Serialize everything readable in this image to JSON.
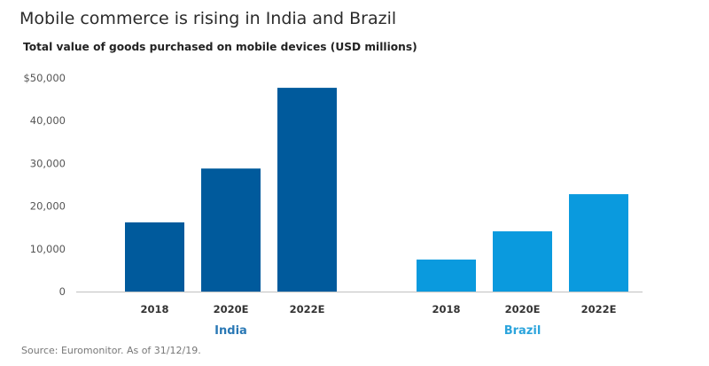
{
  "chart_data": {
    "type": "bar",
    "title": "Mobile commerce is rising in India and Brazil",
    "subtitle": "Total value of goods purchased on mobile devices (USD millions)",
    "source": "Source: Euromonitor. As of 31/12/19.",
    "xlabel": "",
    "ylabel": "",
    "ylim": [
      0,
      50000
    ],
    "yticks": [
      0,
      10000,
      20000,
      30000,
      40000,
      50000
    ],
    "ytick_labels": [
      "0",
      "10,000",
      "20,000",
      "30,000",
      "40,000",
      "$50,000"
    ],
    "grid": false,
    "groups": [
      {
        "name": "India",
        "color": "#005a9c",
        "label_color": "#2a78b5",
        "categories": [
          "2018",
          "2020E",
          "2022E"
        ],
        "values": [
          16200,
          28800,
          47700
        ]
      },
      {
        "name": "Brazil",
        "color": "#0a9ade",
        "label_color": "#2ba4dc",
        "categories": [
          "2018",
          "2020E",
          "2022E"
        ],
        "values": [
          7500,
          14100,
          22800
        ]
      }
    ]
  }
}
